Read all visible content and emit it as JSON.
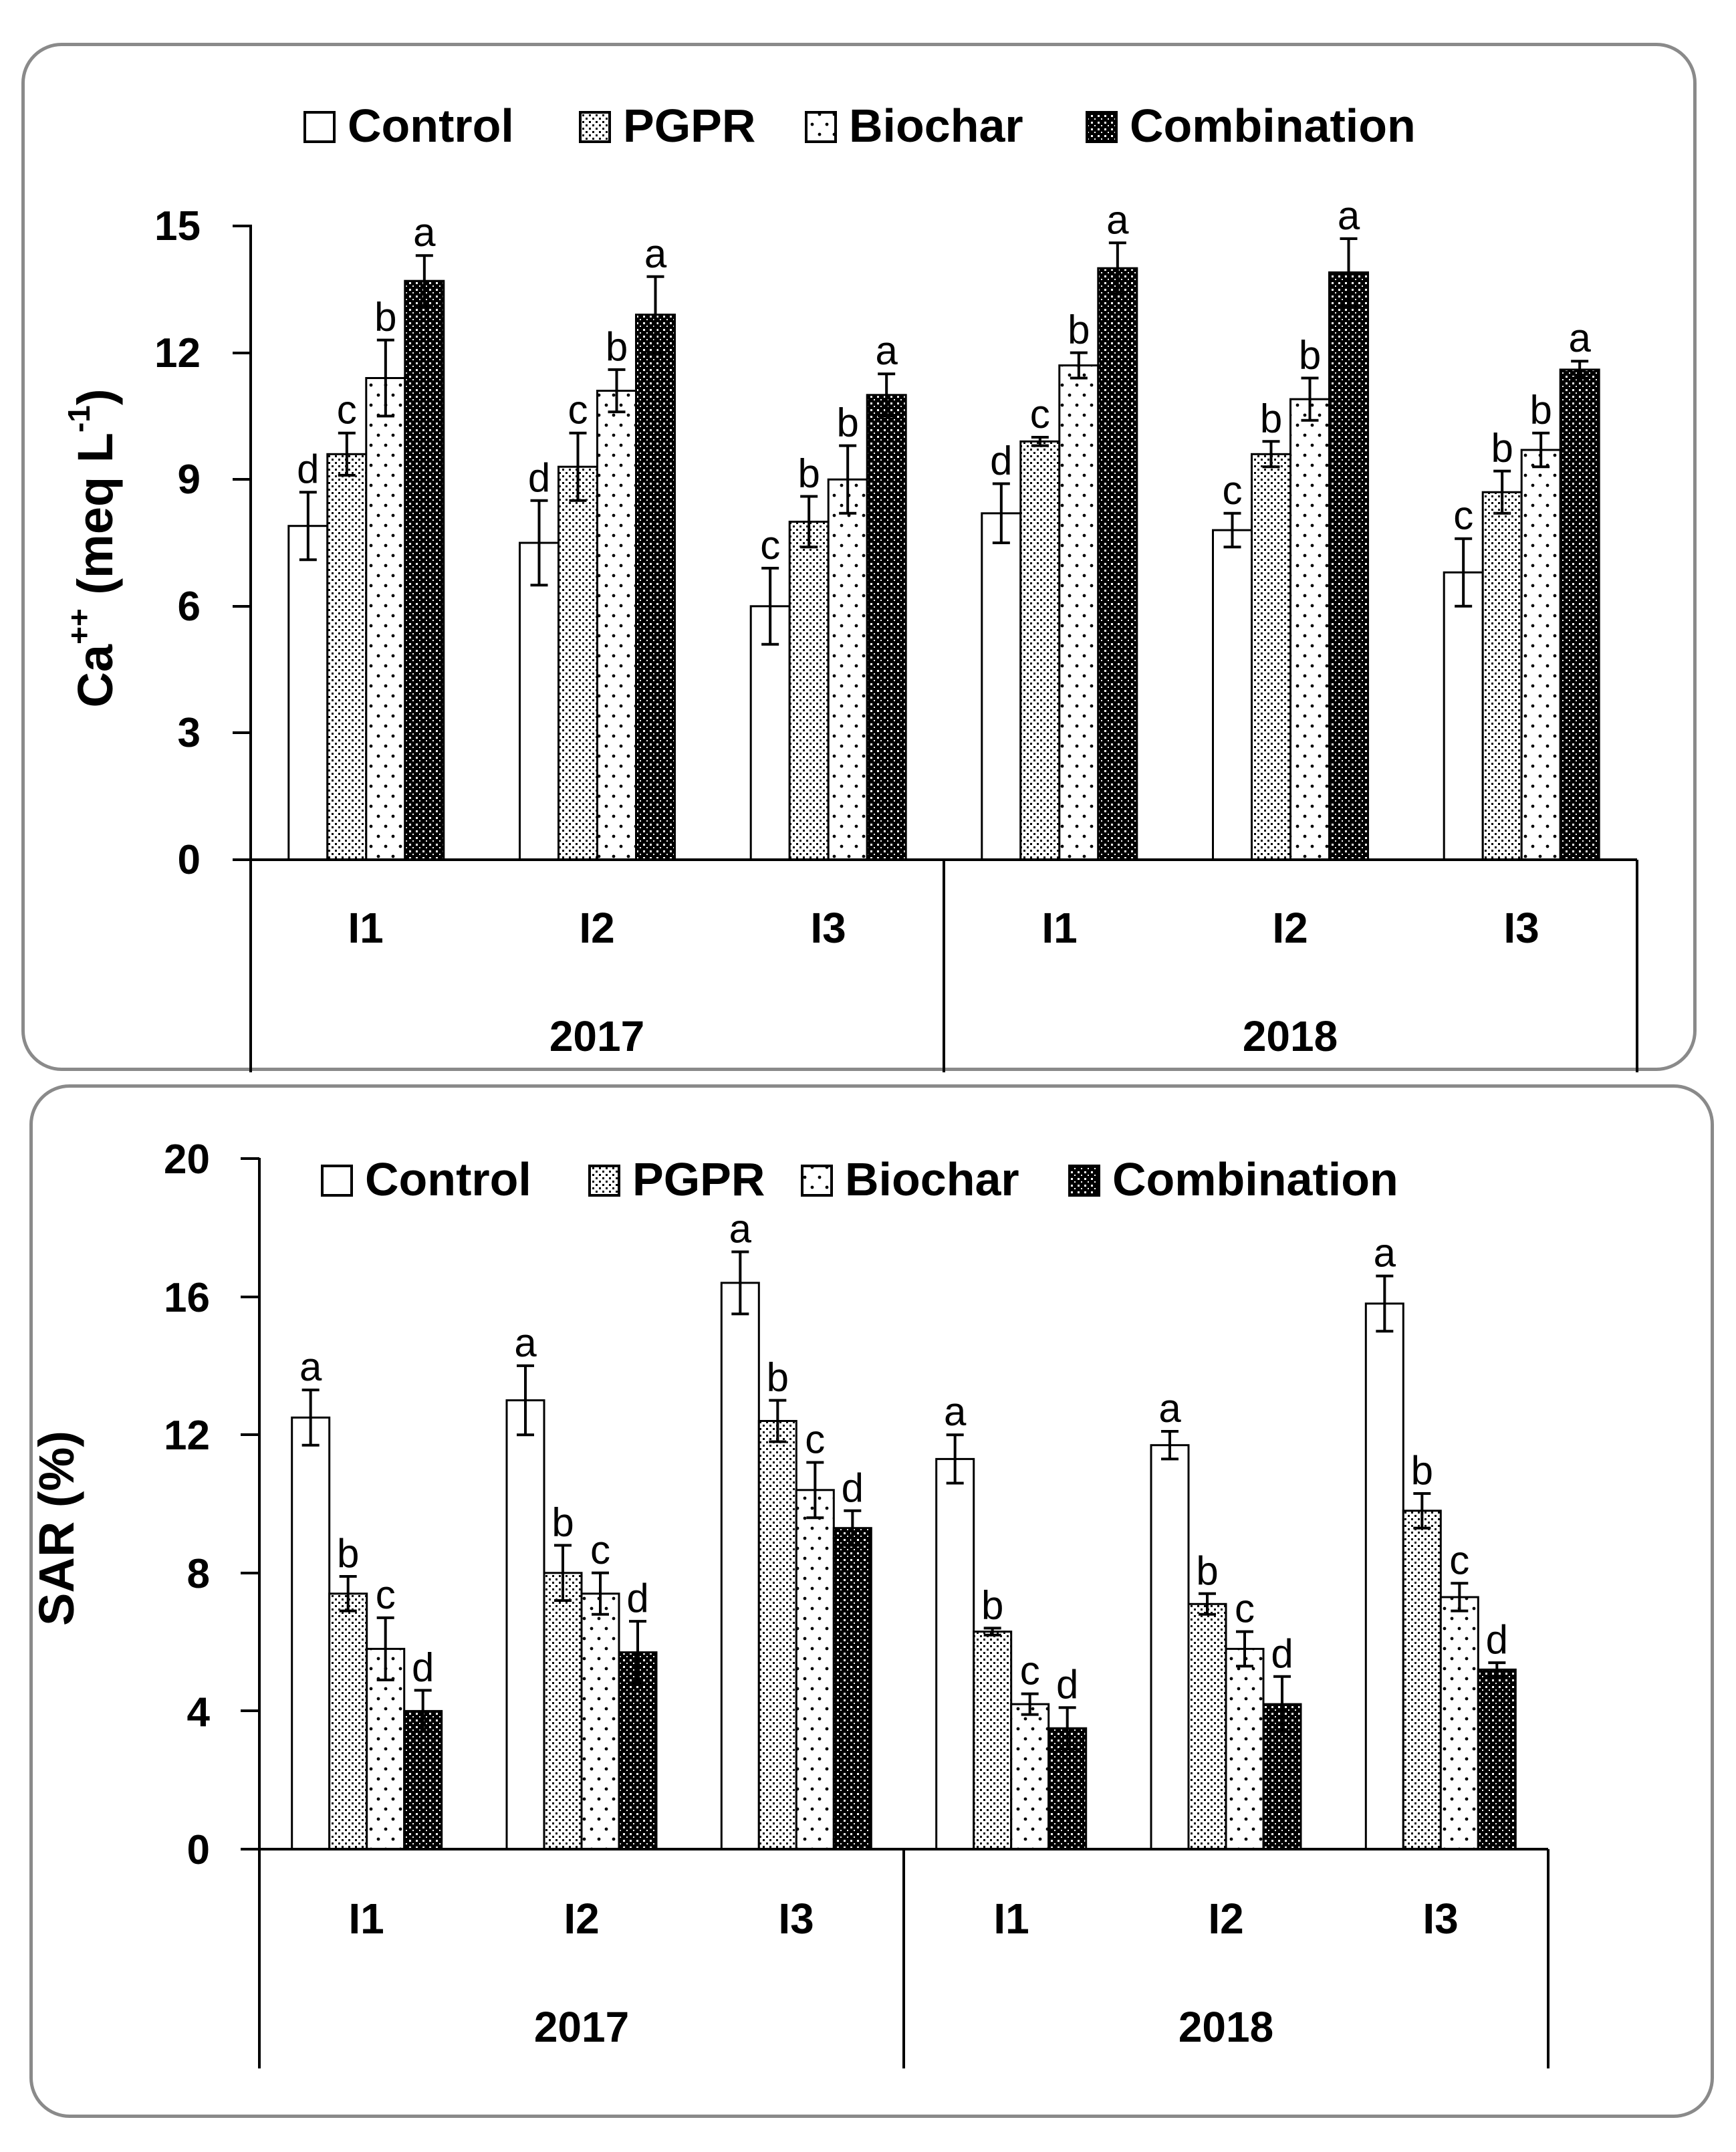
{
  "chart_data": [
    {
      "type": "bar",
      "ylabel_main": "Ca",
      "ylabel_sup": "++",
      "ylabel_unit_pre": " (meq L",
      "ylabel_unit_sup": "-1",
      "ylabel_unit_post": ")",
      "ylim": [
        0,
        15
      ],
      "yticks": [
        "0",
        "3",
        "6",
        "9",
        "12",
        "15"
      ],
      "categories": [
        "I1",
        "I2",
        "I3",
        "I1",
        "I2",
        "I3"
      ],
      "groups": [
        {
          "label": "2017",
          "categories": [
            "I1",
            "I2",
            "I3"
          ]
        },
        {
          "label": "2018",
          "categories": [
            "I1",
            "I2",
            "I3"
          ]
        }
      ],
      "legend": [
        "Control",
        "PGPR",
        "Biochar",
        "Combination"
      ],
      "series": [
        {
          "name": "Control",
          "values": [
            7.9,
            7.5,
            6.0,
            8.2,
            7.8,
            6.8
          ],
          "errors": [
            0.8,
            1.0,
            0.9,
            0.7,
            0.4,
            0.8
          ],
          "letters": [
            "d",
            "d",
            "c",
            "d",
            "c",
            "c"
          ]
        },
        {
          "name": "PGPR",
          "values": [
            9.6,
            9.3,
            8.0,
            9.9,
            9.6,
            8.7
          ],
          "errors": [
            0.5,
            0.8,
            0.6,
            0.1,
            0.3,
            0.5
          ],
          "letters": [
            "c",
            "c",
            "b",
            "c",
            "b",
            "b"
          ]
        },
        {
          "name": "Biochar",
          "values": [
            11.4,
            11.1,
            9.0,
            11.7,
            10.9,
            9.7
          ],
          "errors": [
            0.9,
            0.5,
            0.8,
            0.3,
            0.5,
            0.4
          ],
          "letters": [
            "b",
            "b",
            "b",
            "b",
            "b",
            "b"
          ]
        },
        {
          "name": "Combination",
          "values": [
            13.7,
            12.9,
            11.0,
            14.0,
            13.9,
            11.6
          ],
          "errors": [
            0.6,
            0.9,
            0.5,
            0.6,
            0.8,
            0.2
          ],
          "letters": [
            "a",
            "a",
            "a",
            "a",
            "a",
            "a"
          ]
        }
      ]
    },
    {
      "type": "bar",
      "ylabel": "SAR (%)",
      "ylim": [
        0,
        20
      ],
      "yticks": [
        "0",
        "4",
        "8",
        "12",
        "16",
        "20"
      ],
      "categories": [
        "I1",
        "I2",
        "I3",
        "I1",
        "I2",
        "I3"
      ],
      "groups": [
        {
          "label": "2017",
          "categories": [
            "I1",
            "I2",
            "I3"
          ]
        },
        {
          "label": "2018",
          "categories": [
            "I1",
            "I2",
            "I3"
          ]
        }
      ],
      "legend": [
        "Control",
        "PGPR",
        "Biochar",
        "Combination"
      ],
      "series": [
        {
          "name": "Control",
          "values": [
            12.5,
            13.0,
            16.4,
            11.3,
            11.7,
            15.8
          ],
          "errors": [
            0.8,
            1.0,
            0.9,
            0.7,
            0.4,
            0.8
          ],
          "letters": [
            "a",
            "a",
            "a",
            "a",
            "a",
            "a"
          ]
        },
        {
          "name": "PGPR",
          "values": [
            7.4,
            8.0,
            12.4,
            6.3,
            7.1,
            9.8
          ],
          "errors": [
            0.5,
            0.8,
            0.6,
            0.1,
            0.3,
            0.5
          ],
          "letters": [
            "b",
            "b",
            "b",
            "b",
            "b",
            "b"
          ]
        },
        {
          "name": "Biochar",
          "values": [
            5.8,
            7.4,
            10.4,
            4.2,
            5.8,
            7.3
          ],
          "errors": [
            0.9,
            0.6,
            0.8,
            0.3,
            0.5,
            0.4
          ],
          "letters": [
            "c",
            "c",
            "c",
            "c",
            "c",
            "c"
          ]
        },
        {
          "name": "Combination",
          "values": [
            4.0,
            5.7,
            9.3,
            3.5,
            4.2,
            5.2
          ],
          "errors": [
            0.6,
            0.9,
            0.5,
            0.6,
            0.8,
            0.2
          ],
          "letters": [
            "d",
            "d",
            "d",
            "d",
            "d",
            "d"
          ]
        }
      ]
    }
  ]
}
